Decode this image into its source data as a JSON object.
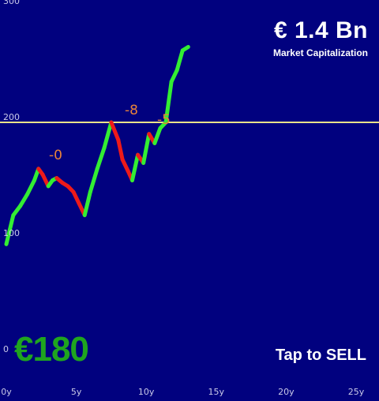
{
  "market_cap": {
    "value": "€ 1.4 Bn",
    "label": "Market Capitalization"
  },
  "price": {
    "value": "€180",
    "color": "#1fa51f"
  },
  "action": {
    "label": "Tap to SELL"
  },
  "trade_markers": [
    "-0",
    "-8",
    "-5"
  ],
  "colors": {
    "background": "#01017f",
    "up": "#33ee33",
    "down": "#ee1a1a",
    "ghost": "#c8c8ff",
    "reference_line": "#e9e28a"
  },
  "chart_data": {
    "type": "line",
    "x_ticks": [
      "0y",
      "5y",
      "10y",
      "15y",
      "20y",
      "25y"
    ],
    "y_ticks": [
      "300",
      "200",
      "100",
      "0"
    ],
    "xlim": [
      0,
      25
    ],
    "ylim": [
      0,
      300
    ],
    "reference_line": 200,
    "series": [
      {
        "x": [
          0,
          0.5,
          1,
          1.5,
          2,
          2.3,
          2.6,
          3,
          3.3,
          3.6,
          4,
          4.4,
          4.8,
          5.2,
          5.6,
          6,
          6.5,
          7,
          7.5,
          8,
          8.3,
          8.7,
          9,
          9.4,
          9.8,
          10.2,
          10.6,
          11,
          11.4,
          11.8,
          12.2,
          12.6,
          13
        ],
        "y": [
          95,
          120,
          128,
          138,
          150,
          160,
          155,
          145,
          150,
          152,
          148,
          145,
          140,
          130,
          120,
          140,
          160,
          178,
          200,
          185,
          168,
          158,
          150,
          172,
          165,
          190,
          182,
          195,
          200,
          235,
          245,
          262,
          265
        ]
      }
    ]
  }
}
